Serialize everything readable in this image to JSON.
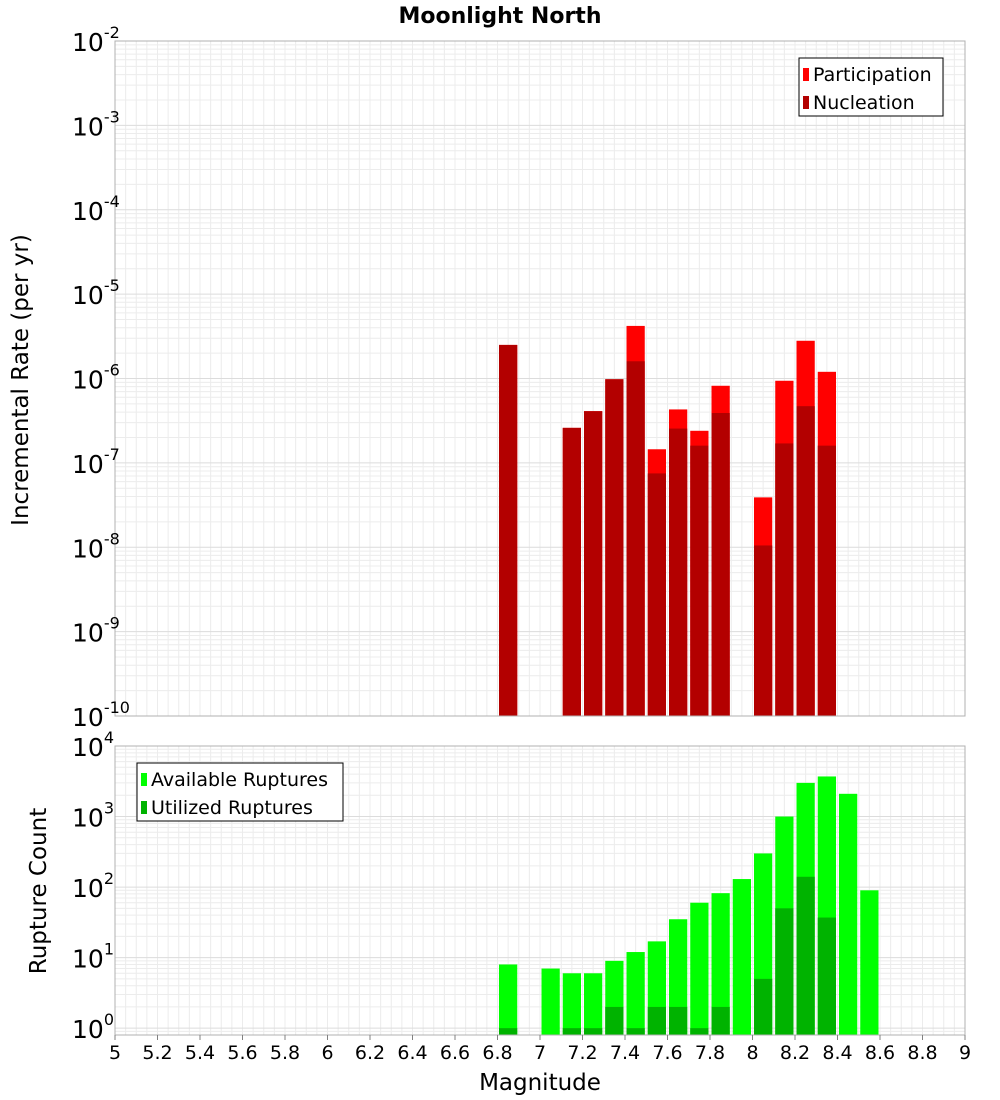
{
  "chart_data": [
    {
      "type": "bar",
      "title": "Moonlight North",
      "xlabel": "",
      "ylabel": "Incremental Rate (per yr)",
      "y_scale": "log",
      "ylim": [
        1e-10,
        0.01
      ],
      "xlim": [
        5,
        9
      ],
      "grid": true,
      "legend_position": "top-right",
      "bar_width": 0.1,
      "overlay": true,
      "series": [
        {
          "name": "Participation",
          "color": "#ff0000",
          "x": [
            6.85,
            7.15,
            7.25,
            7.35,
            7.45,
            7.55,
            7.65,
            7.75,
            7.85,
            8.05,
            8.15,
            8.25,
            8.35
          ],
          "values": [
            2.5e-06,
            2.6e-07,
            4.1e-07,
            9.8e-07,
            4.2e-06,
            1.45e-07,
            4.3e-07,
            2.4e-07,
            8.2e-07,
            3.9e-08,
            9.4e-07,
            2.8e-06,
            1.2e-06
          ]
        },
        {
          "name": "Nucleation",
          "color": "#b30000",
          "x": [
            6.85,
            7.15,
            7.25,
            7.35,
            7.45,
            7.55,
            7.65,
            7.75,
            7.85,
            8.05,
            8.15,
            8.25,
            8.35
          ],
          "values": [
            2.5e-06,
            2.6e-07,
            4.1e-07,
            9.8e-07,
            1.6e-06,
            7.5e-08,
            2.55e-07,
            1.6e-07,
            3.9e-07,
            1.05e-08,
            1.7e-07,
            4.7e-07,
            1.6e-07
          ]
        }
      ]
    },
    {
      "type": "bar",
      "title": "",
      "xlabel": "Magnitude",
      "ylabel": "Rupture Count",
      "y_scale": "log",
      "ylim": [
        0.8,
        10000
      ],
      "xlim": [
        5,
        9
      ],
      "x_ticks": [
        "5",
        "5.2",
        "5.4",
        "5.6",
        "5.8",
        "6",
        "6.2",
        "6.4",
        "6.6",
        "6.8",
        "7",
        "7.2",
        "7.4",
        "7.6",
        "7.8",
        "8",
        "8.2",
        "8.4",
        "8.6",
        "8.8",
        "9"
      ],
      "grid": true,
      "legend_position": "top-left",
      "bar_width": 0.1,
      "overlay": true,
      "series": [
        {
          "name": "Available Ruptures",
          "color": "#00ff00",
          "x": [
            6.85,
            7.05,
            7.15,
            7.25,
            7.35,
            7.45,
            7.55,
            7.65,
            7.75,
            7.85,
            7.95,
            8.05,
            8.15,
            8.25,
            8.35,
            8.45,
            8.55
          ],
          "values": [
            8,
            7,
            6,
            6,
            9,
            12,
            17,
            35,
            60,
            82,
            130,
            300,
            1000,
            3000,
            3700,
            2100,
            90
          ]
        },
        {
          "name": "Utilized Ruptures",
          "color": "#00b300",
          "x": [
            6.85,
            7.15,
            7.25,
            7.35,
            7.45,
            7.55,
            7.65,
            7.75,
            7.85,
            8.05,
            8.15,
            8.25,
            8.35
          ],
          "values": [
            1,
            1,
            1,
            2,
            1,
            2,
            2,
            1,
            2,
            5,
            50,
            140,
            37
          ]
        }
      ]
    }
  ]
}
